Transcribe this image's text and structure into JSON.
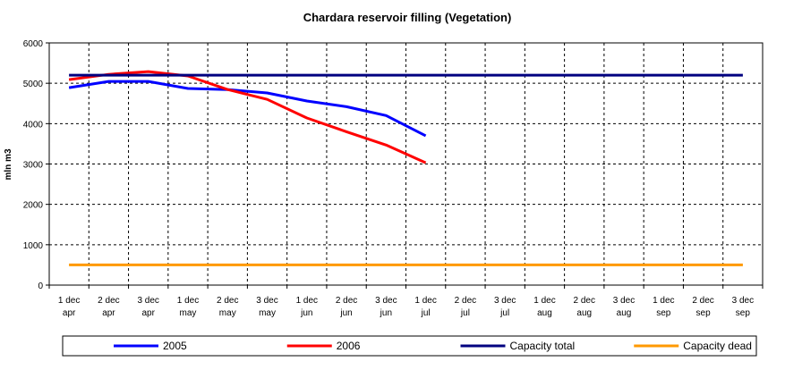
{
  "chart_data": {
    "type": "line",
    "title": "Chardara reservoir filling  (Vegetation)",
    "y_label": "mln m3",
    "categories": [
      [
        "1 dec",
        "apr"
      ],
      [
        "2 dec",
        "apr"
      ],
      [
        "3 dec",
        "apr"
      ],
      [
        "1 dec",
        "may"
      ],
      [
        "2 dec",
        "may"
      ],
      [
        "3 dec",
        "may"
      ],
      [
        "1 dec",
        "jun"
      ],
      [
        "2 dec",
        "jun"
      ],
      [
        "3 dec",
        "jun"
      ],
      [
        "1 dec",
        "jul"
      ],
      [
        "2 dec",
        "jul"
      ],
      [
        "3 dec",
        "jul"
      ],
      [
        "1 dec",
        "aug"
      ],
      [
        "2 dec",
        "aug"
      ],
      [
        "3 dec",
        "aug"
      ],
      [
        "1 dec",
        "sep"
      ],
      [
        "2 dec",
        "sep"
      ],
      [
        "3 dec",
        "sep"
      ]
    ],
    "series": [
      {
        "name": "2005",
        "color": "#0000ff",
        "values": [
          4890,
          5045,
          5045,
          4870,
          4845,
          4760,
          4560,
          4420,
          4200,
          3700,
          null,
          null,
          null,
          null,
          null,
          null,
          null,
          null
        ]
      },
      {
        "name": "2006",
        "color": "#ff0000",
        "values": [
          5090,
          5220,
          5290,
          5180,
          4845,
          4600,
          4140,
          3800,
          3470,
          3030,
          null,
          null,
          null,
          null,
          null,
          null,
          null,
          null
        ]
      },
      {
        "name": "Capacity total",
        "color": "#000080",
        "values": [
          5200,
          5200,
          5200,
          5200,
          5200,
          5200,
          5200,
          5200,
          5200,
          5200,
          5200,
          5200,
          5200,
          5200,
          5200,
          5200,
          5200,
          5200
        ]
      },
      {
        "name": "Capacity dead",
        "color": "#ff9900",
        "values": [
          500,
          500,
          500,
          500,
          500,
          500,
          500,
          500,
          500,
          500,
          500,
          500,
          500,
          500,
          500,
          500,
          500,
          500
        ]
      }
    ],
    "ylim": [
      0,
      6000
    ],
    "yticks": [
      0,
      1000,
      2000,
      3000,
      4000,
      5000,
      6000
    ],
    "grid": true,
    "legend": "bottom"
  }
}
